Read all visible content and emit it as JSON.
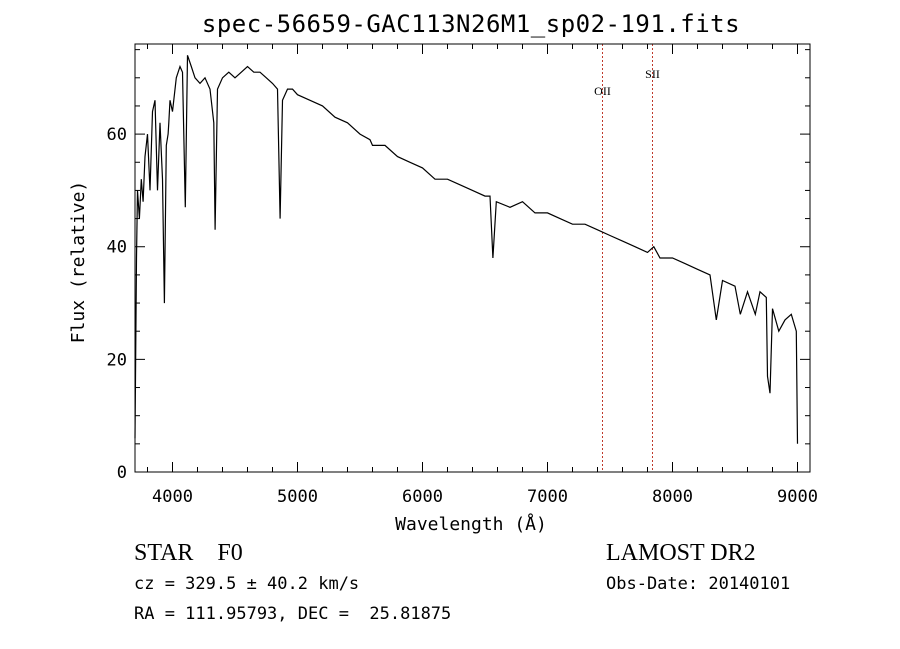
{
  "title": "spec-56659-GAC113N26M1_sp02-191.fits",
  "chart_data": {
    "type": "line",
    "title": "spec-56659-GAC113N26M1_sp02-191.fits",
    "xlabel": "Wavelength (Å)",
    "ylabel": "Flux (relative)",
    "xlim": [
      3700,
      9100
    ],
    "ylim": [
      0,
      76
    ],
    "xticks": [
      4000,
      5000,
      6000,
      7000,
      8000,
      9000
    ],
    "yticks": [
      0,
      20,
      40,
      60
    ],
    "grid": false,
    "series": [
      {
        "x": [
          3700,
          3712,
          3720,
          3735,
          3750,
          3765,
          3780,
          3800,
          3820,
          3840,
          3860,
          3880,
          3900,
          3920,
          3935,
          3950,
          3965,
          3970,
          3980,
          4000,
          4030,
          4060,
          4080,
          4102,
          4120,
          4150,
          4180,
          4220,
          4260,
          4300,
          4330,
          4341,
          4360,
          4400,
          4450,
          4500,
          4550,
          4600,
          4650,
          4700,
          4750,
          4800,
          4840,
          4861,
          4880,
          4920,
          4960,
          5000,
          5100,
          5200,
          5300,
          5400,
          5500,
          5580,
          5600,
          5700,
          5800,
          5900,
          6000,
          6100,
          6200,
          6300,
          6400,
          6500,
          6540,
          6563,
          6590,
          6700,
          6800,
          6900,
          7000,
          7100,
          7200,
          7300,
          7400,
          7500,
          7600,
          7700,
          7800,
          7850,
          7900,
          8000,
          8100,
          8200,
          8300,
          8350,
          8400,
          8500,
          8542,
          8600,
          8662,
          8700,
          8750,
          8760,
          8780,
          8800,
          8850,
          8900,
          8950,
          8990,
          9000
        ],
        "values": [
          6,
          38,
          50,
          45,
          52,
          48,
          56,
          60,
          50,
          64,
          66,
          50,
          62,
          52,
          30,
          58,
          60,
          62,
          66,
          64,
          70,
          72,
          71,
          47,
          74,
          72,
          70,
          69,
          70,
          68,
          62,
          43,
          68,
          70,
          71,
          70,
          71,
          72,
          71,
          71,
          70,
          69,
          68,
          45,
          66,
          68,
          68,
          67,
          66,
          65,
          63,
          62,
          60,
          59,
          58,
          58,
          56,
          55,
          54,
          52,
          52,
          51,
          50,
          49,
          49,
          38,
          48,
          47,
          48,
          46,
          46,
          45,
          44,
          44,
          43,
          42,
          41,
          40,
          39,
          40,
          38,
          38,
          37,
          36,
          35,
          27,
          34,
          33,
          28,
          32,
          28,
          32,
          31,
          17,
          14,
          29,
          25,
          27,
          28,
          25,
          5
        ]
      }
    ],
    "lines": [
      {
        "label": "OII",
        "x": 7440
      },
      {
        "label": "SII",
        "x": 7840
      }
    ]
  },
  "info": {
    "class_line": "STAR    F0",
    "survey": "LAMOST DR2",
    "cz": "cz = 329.5 ± 40.2 km/s",
    "obs_date": "Obs-Date: 20140101",
    "radec": "RA = 111.95793, DEC =  25.81875"
  },
  "colors": {
    "axes": "#000000",
    "spectrum": "#000000",
    "lines": "#c0392b"
  }
}
